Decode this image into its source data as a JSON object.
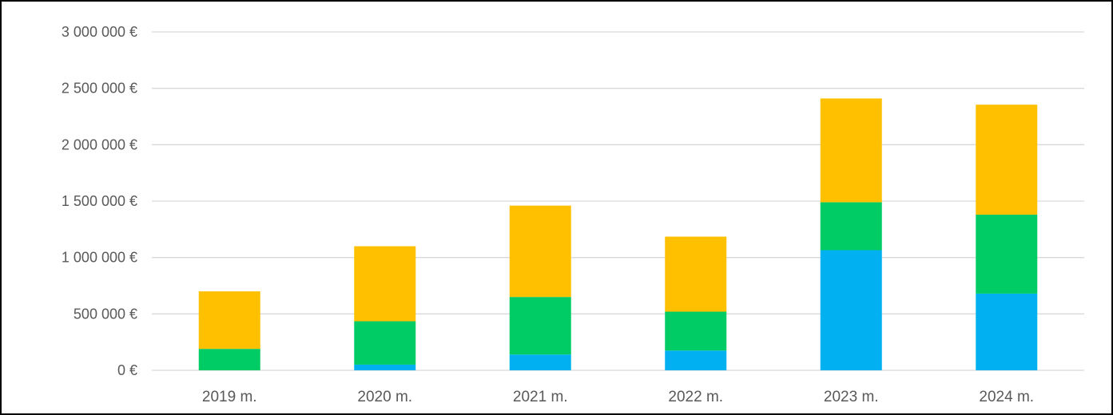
{
  "chart_data": {
    "type": "bar",
    "stacked": true,
    "categories": [
      "2019 m.",
      "2020 m.",
      "2021 m.",
      "2022 m.",
      "2023 m.",
      "2024 m."
    ],
    "series": [
      {
        "color": "#00B0F0",
        "values": [
          0,
          50000,
          140000,
          175000,
          1065000,
          680000
        ]
      },
      {
        "color": "#00CC66",
        "values": [
          190000,
          385000,
          510000,
          345000,
          425000,
          700000
        ]
      },
      {
        "color": "#FFC000",
        "values": [
          510000,
          665000,
          810000,
          665000,
          920000,
          975000
        ]
      }
    ],
    "ylim": [
      0,
      3000000
    ],
    "yticks": [
      0,
      500000,
      1000000,
      1500000,
      2000000,
      2500000,
      3000000
    ],
    "ytick_labels": [
      "0 €",
      "500 000 €",
      "1 000 000 €",
      "1 500 000 €",
      "2 000 000 €",
      "2 500 000 €",
      "3 000 000 €"
    ],
    "grid": true,
    "title": "",
    "xlabel": "",
    "ylabel": ""
  }
}
